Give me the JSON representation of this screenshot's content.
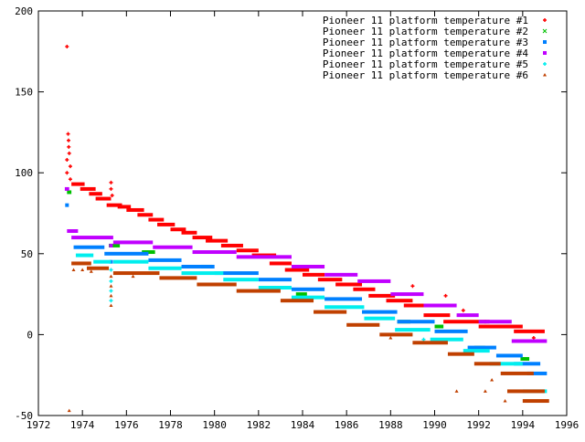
{
  "chart_data": {
    "type": "scatter",
    "title": "",
    "xlabel": "",
    "ylabel": "",
    "xlim": [
      1972,
      1996
    ],
    "ylim": [
      -50,
      200
    ],
    "x_ticks": [
      "1972",
      "1974",
      "1976",
      "1978",
      "1980",
      "1982",
      "1984",
      "1986",
      "1988",
      "1990",
      "1992",
      "1994",
      "1996"
    ],
    "y_ticks": [
      "-50",
      "0",
      "50",
      "100",
      "150",
      "200"
    ],
    "grid": false,
    "legend_position": "top-right",
    "series": [
      {
        "name": "Pioneer 11 platform temperature #1",
        "color": "#ff0000",
        "marker": "plus",
        "steps": [
          [
            1973.5,
            1974.1,
            93
          ],
          [
            1973.9,
            1974.6,
            90
          ],
          [
            1974.3,
            1974.9,
            87
          ],
          [
            1974.6,
            1975.3,
            84
          ],
          [
            1975.1,
            1975.8,
            80
          ],
          [
            1975.6,
            1976.2,
            79
          ],
          [
            1976,
            1976.8,
            77
          ],
          [
            1976.5,
            1977.2,
            74
          ],
          [
            1977,
            1977.7,
            71
          ],
          [
            1977.4,
            1978.2,
            68
          ],
          [
            1978,
            1978.7,
            65
          ],
          [
            1978.5,
            1979.2,
            63
          ],
          [
            1979,
            1979.9,
            60
          ],
          [
            1979.6,
            1980.6,
            58
          ],
          [
            1980.3,
            1981.3,
            55
          ],
          [
            1981,
            1982,
            52
          ],
          [
            1981.7,
            1982.8,
            49
          ],
          [
            1982.5,
            1983.5,
            44
          ],
          [
            1983.2,
            1984.3,
            40
          ],
          [
            1984,
            1985,
            37
          ],
          [
            1984.7,
            1985.8,
            34
          ],
          [
            1985.5,
            1986.7,
            31
          ],
          [
            1986.3,
            1987.3,
            28
          ],
          [
            1987,
            1988.2,
            24
          ],
          [
            1987.8,
            1989,
            21
          ],
          [
            1988.6,
            1990,
            18
          ],
          [
            1989.5,
            1990.7,
            12
          ],
          [
            1990.4,
            1992.5,
            8
          ],
          [
            1992,
            1994,
            5
          ],
          [
            1993.6,
            1995,
            2
          ]
        ],
        "points": [
          [
            1973.3,
            178
          ],
          [
            1973.35,
            124
          ],
          [
            1973.37,
            120
          ],
          [
            1973.38,
            116
          ],
          [
            1973.4,
            112
          ],
          [
            1973.3,
            108
          ],
          [
            1973.45,
            104
          ],
          [
            1973.3,
            100
          ],
          [
            1973.45,
            96
          ],
          [
            1975.3,
            94
          ],
          [
            1975.3,
            90
          ],
          [
            1975.35,
            86
          ],
          [
            1989,
            30
          ],
          [
            1990.5,
            24
          ],
          [
            1991.3,
            15
          ],
          [
            1992.3,
            8
          ],
          [
            1994.5,
            -2
          ]
        ]
      },
      {
        "name": "Pioneer 11 platform temperature #2",
        "color": "#00c000",
        "marker": "cross",
        "steps": [
          [
            1973.3,
            1973.5,
            88
          ],
          [
            1975.2,
            1975.7,
            55
          ],
          [
            1976.7,
            1977.3,
            51
          ],
          [
            1979.4,
            1979.9,
            42
          ],
          [
            1983.7,
            1984.2,
            25
          ],
          [
            1988.3,
            1988.9,
            8
          ],
          [
            1990,
            1990.4,
            5
          ],
          [
            1991.8,
            1992.3,
            -8
          ],
          [
            1993.9,
            1994.3,
            -15
          ]
        ],
        "points": []
      },
      {
        "name": "Pioneer 11 platform temperature #3",
        "color": "#0080ff",
        "marker": "square",
        "steps": [
          [
            1973.6,
            1975,
            54
          ],
          [
            1975,
            1977,
            50
          ],
          [
            1977,
            1978.5,
            46
          ],
          [
            1978.5,
            1980,
            42
          ],
          [
            1980,
            1982,
            38
          ],
          [
            1982,
            1983.5,
            34
          ],
          [
            1983.5,
            1985,
            28
          ],
          [
            1985,
            1986.7,
            22
          ],
          [
            1986.7,
            1988.3,
            14
          ],
          [
            1988.3,
            1990,
            8
          ],
          [
            1990,
            1991.5,
            2
          ],
          [
            1991.5,
            1992.8,
            -8
          ],
          [
            1992.8,
            1994,
            -13
          ],
          [
            1993.6,
            1994.8,
            -18
          ],
          [
            1994.2,
            1995.1,
            -24
          ]
        ],
        "points": [
          [
            1973.3,
            80
          ],
          [
            1975.3,
            45
          ]
        ]
      },
      {
        "name": "Pioneer 11 platform temperature #4",
        "color": "#c000ff",
        "marker": "square",
        "steps": [
          [
            1973.2,
            1973.4,
            90
          ],
          [
            1973.3,
            1973.8,
            64
          ],
          [
            1973.5,
            1975.4,
            60
          ],
          [
            1975.4,
            1977.2,
            57
          ],
          [
            1977.2,
            1979,
            54
          ],
          [
            1979,
            1981,
            51
          ],
          [
            1981,
            1983.5,
            48
          ],
          [
            1983.5,
            1985,
            42
          ],
          [
            1985,
            1986.5,
            37
          ],
          [
            1986.5,
            1988,
            33
          ],
          [
            1988,
            1989.5,
            25
          ],
          [
            1989.5,
            1991,
            18
          ],
          [
            1991,
            1992,
            12
          ],
          [
            1992,
            1993.5,
            8
          ],
          [
            1993.5,
            1995.1,
            -4
          ]
        ],
        "points": [
          [
            1975.3,
            55
          ]
        ]
      },
      {
        "name": "Pioneer 11 platform temperature #5",
        "color": "#00eeee",
        "marker": "plus",
        "steps": [
          [
            1973.7,
            1974.5,
            49
          ],
          [
            1974.5,
            1975.3,
            45
          ],
          [
            1975.4,
            1977,
            45
          ],
          [
            1977,
            1978.5,
            41
          ],
          [
            1978.5,
            1980.4,
            38
          ],
          [
            1980.4,
            1982,
            34
          ],
          [
            1982,
            1983.5,
            29
          ],
          [
            1983.5,
            1985,
            23
          ],
          [
            1985,
            1986.8,
            17
          ],
          [
            1986.8,
            1988.2,
            10
          ],
          [
            1988.2,
            1989.8,
            3
          ],
          [
            1989.8,
            1991.3,
            -3
          ],
          [
            1991.3,
            1992.5,
            -10
          ],
          [
            1992.5,
            1994,
            -18
          ],
          [
            1994,
            1995.1,
            -35
          ]
        ],
        "points": [
          [
            1975.3,
            40
          ],
          [
            1975.3,
            33
          ],
          [
            1975.3,
            27
          ],
          [
            1975.3,
            21
          ],
          [
            1989.5,
            -3
          ],
          [
            1991.6,
            -10
          ]
        ]
      },
      {
        "name": "Pioneer 11 platform temperature #6",
        "color": "#c04000",
        "marker": "triangle",
        "steps": [
          [
            1973.5,
            1974.4,
            44
          ],
          [
            1974.2,
            1975.2,
            41
          ],
          [
            1975.4,
            1977.5,
            38
          ],
          [
            1977.5,
            1979.2,
            35
          ],
          [
            1979.2,
            1981,
            31
          ],
          [
            1981,
            1983,
            27
          ],
          [
            1983,
            1984.5,
            21
          ],
          [
            1984.5,
            1986,
            14
          ],
          [
            1986,
            1987.5,
            6
          ],
          [
            1987.5,
            1989,
            0
          ],
          [
            1989,
            1990.6,
            -5
          ],
          [
            1990.6,
            1991.8,
            -12
          ],
          [
            1991.8,
            1993,
            -18
          ],
          [
            1993,
            1994.5,
            -24
          ],
          [
            1993.3,
            1995,
            -35
          ],
          [
            1994,
            1995.2,
            -41
          ]
        ],
        "points": [
          [
            1973.6,
            40
          ],
          [
            1974,
            40
          ],
          [
            1975.3,
            36
          ],
          [
            1975.3,
            30
          ],
          [
            1975.3,
            24
          ],
          [
            1975.3,
            18
          ],
          [
            1974.4,
            39
          ],
          [
            1976.3,
            36
          ],
          [
            1988,
            -2
          ],
          [
            1991,
            -35
          ],
          [
            1992.6,
            -28
          ],
          [
            1992.3,
            -35
          ],
          [
            1993.2,
            -41
          ],
          [
            1973.4,
            -47
          ]
        ]
      }
    ]
  }
}
